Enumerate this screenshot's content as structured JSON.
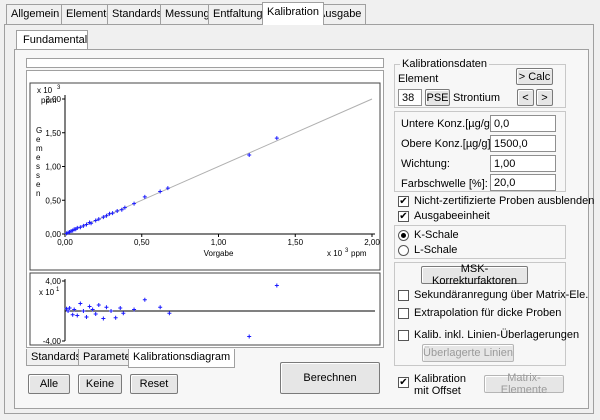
{
  "tabs": [
    "Allgemein",
    "Elemente",
    "Standards",
    "Messung",
    "Entfaltung",
    "Kalibration",
    "Ausgabe"
  ],
  "active_tab": "Kalibration",
  "sub_tab": "Fundamental",
  "chart_tabs": [
    "Standards",
    "Parameter",
    "Kalibrationsdiagram"
  ],
  "chart_buttons": {
    "all": "Alle",
    "none": "Keine",
    "reset": "Reset"
  },
  "calc_button": "Berechnen",
  "calib": {
    "group_title": "Kalibrationsdaten",
    "element_label": "Element",
    "calc_btn": "> Calc",
    "prev_btn": "<",
    "next_btn": ">",
    "z": "38",
    "pse_btn": "PSE",
    "element_name": "Strontium"
  },
  "fields": {
    "lower_label": "Untere Konz.[µg/g]:",
    "lower_value": "0,0",
    "upper_label": "Obere Konz.[µg/g]:",
    "upper_value": "1500,0",
    "weight_label": "Wichtung:",
    "weight_value": "1,00",
    "color_label": "Farbschwelle [%]:",
    "color_value": "20,0"
  },
  "checks": {
    "hide_uncert": "Nicht-zertifizierte Proben ausblenden",
    "output_unit": "Ausgabeeinheit"
  },
  "radios": {
    "k": "K-Schale",
    "l": "L-Schale"
  },
  "msk": {
    "button": "MSK-Korrekturfaktoren",
    "c1": "Sekundäranregung über Matrix-Ele.",
    "c2": "Extrapolation für dicke Proben",
    "c3": "Kalib. inkl. Linien-Überlagerungen",
    "overlay_btn": "Überlagerte Linien"
  },
  "offset_label_1": "Kalibration",
  "offset_label_2": "mit Offset",
  "matrix_btn": "Matrix-Elemente",
  "chart_data": [
    {
      "type": "scatter",
      "ylabel": "Gemessen",
      "xlabel": "Vorgabe",
      "x_multiplier": "x 10",
      "x_exp": "3",
      "x_unit": "ppm",
      "y_multiplier": "x 10",
      "y_exp": "3",
      "y_unit": "ppm",
      "xlim": [
        0,
        2.0
      ],
      "ylim": [
        0,
        2.0
      ],
      "x_ticks": [
        "0,00",
        "0,50",
        "1,00",
        "1,50",
        "2,00"
      ],
      "y_ticks": [
        "2,00",
        "1,50",
        "1,00",
        "0,50",
        "0,00"
      ],
      "points": [
        [
          0.01,
          0.01
        ],
        [
          0.02,
          0.02
        ],
        [
          0.03,
          0.03
        ],
        [
          0.04,
          0.045
        ],
        [
          0.05,
          0.05
        ],
        [
          0.06,
          0.07
        ],
        [
          0.07,
          0.07
        ],
        [
          0.08,
          0.09
        ],
        [
          0.1,
          0.1
        ],
        [
          0.12,
          0.12
        ],
        [
          0.14,
          0.14
        ],
        [
          0.16,
          0.17
        ],
        [
          0.17,
          0.16
        ],
        [
          0.2,
          0.2
        ],
        [
          0.22,
          0.22
        ],
        [
          0.25,
          0.25
        ],
        [
          0.27,
          0.27
        ],
        [
          0.29,
          0.3
        ],
        [
          0.31,
          0.31
        ],
        [
          0.34,
          0.34
        ],
        [
          0.37,
          0.36
        ],
        [
          0.39,
          0.39
        ],
        [
          0.45,
          0.45
        ],
        [
          0.52,
          0.55
        ],
        [
          0.62,
          0.63
        ],
        [
          0.67,
          0.68
        ],
        [
          1.2,
          1.17
        ],
        [
          1.38,
          1.42
        ]
      ],
      "fit_line": [
        [
          0,
          0
        ],
        [
          2.0,
          2.0
        ]
      ]
    },
    {
      "type": "scatter",
      "y_multiplier": "x 10",
      "y_exp": "1",
      "ylim": [
        -4.0,
        4.0
      ],
      "y_ticks": [
        "4,00",
        "-4,00"
      ],
      "points": [
        [
          0.01,
          0.3
        ],
        [
          0.02,
          0.0
        ],
        [
          0.03,
          0.4
        ],
        [
          0.05,
          -0.5
        ],
        [
          0.06,
          0.2
        ],
        [
          0.08,
          -0.6
        ],
        [
          0.1,
          1.0
        ],
        [
          0.12,
          0.0
        ],
        [
          0.14,
          -0.8
        ],
        [
          0.16,
          0.6
        ],
        [
          0.18,
          0.2
        ],
        [
          0.2,
          -0.4
        ],
        [
          0.22,
          0.8
        ],
        [
          0.25,
          -1.0
        ],
        [
          0.27,
          0.5
        ],
        [
          0.3,
          0.0
        ],
        [
          0.33,
          -0.9
        ],
        [
          0.36,
          0.4
        ],
        [
          0.38,
          -0.3
        ],
        [
          0.45,
          0.2
        ],
        [
          0.52,
          1.5
        ],
        [
          0.62,
          0.5
        ],
        [
          0.68,
          -0.3
        ],
        [
          1.2,
          -3.4
        ],
        [
          1.38,
          3.4
        ]
      ]
    }
  ]
}
